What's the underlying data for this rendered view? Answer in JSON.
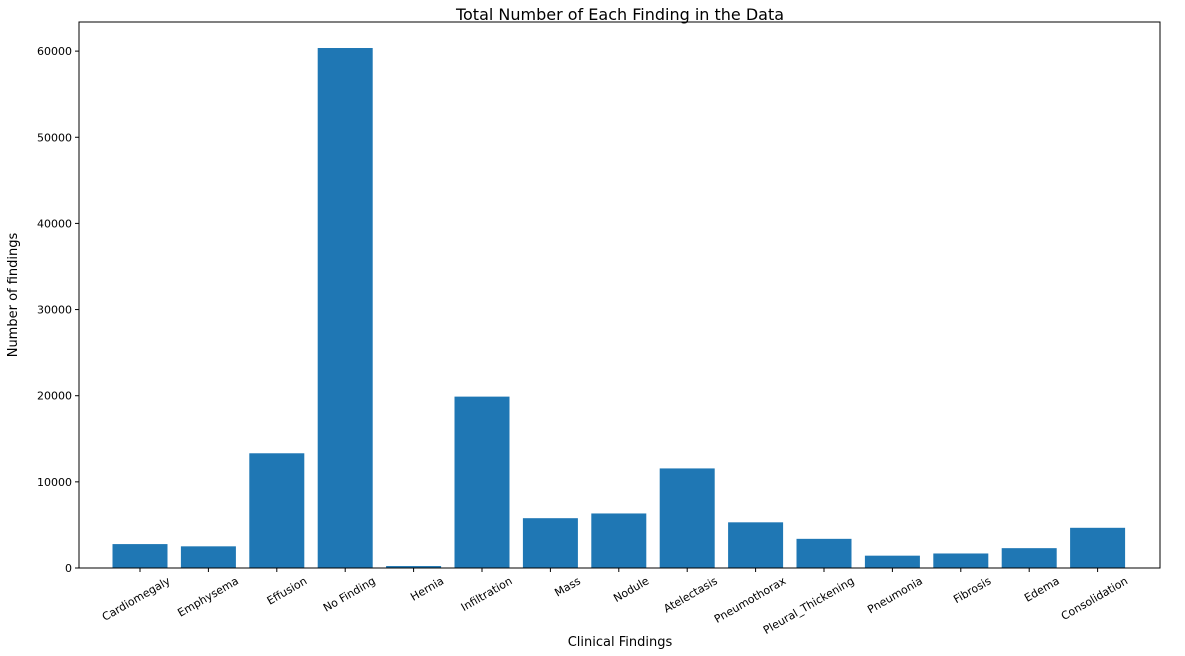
{
  "chart_data": {
    "type": "bar",
    "title": "Total Number of Each Finding in the Data",
    "xlabel": "Clinical Findings",
    "ylabel": "Number of findings",
    "categories": [
      "Cardiomegaly",
      "Emphysema",
      "Effusion",
      "No Finding",
      "Hernia",
      "Infiltration",
      "Mass",
      "Nodule",
      "Atelectasis",
      "Pneumothorax",
      "Pleural_Thickening",
      "Pneumonia",
      "Fibrosis",
      "Edema",
      "Consolidation"
    ],
    "values": [
      2776,
      2516,
      13317,
      60361,
      227,
      19894,
      5782,
      6331,
      11559,
      5302,
      3385,
      1431,
      1686,
      2303,
      4667
    ],
    "yticks": [
      0,
      10000,
      20000,
      30000,
      40000,
      50000,
      60000
    ],
    "ylim": [
      0,
      63380
    ],
    "grid": false,
    "legend": "none",
    "bar_color": "#1f77b4"
  }
}
